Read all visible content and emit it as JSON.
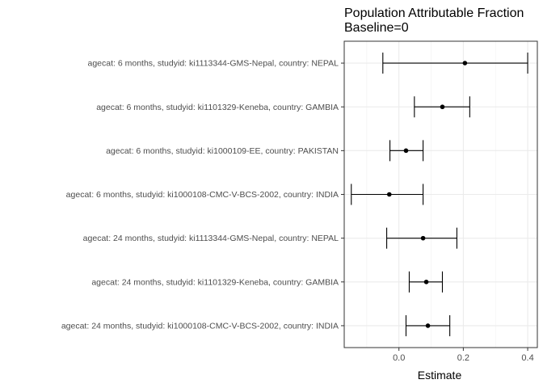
{
  "chart_data": {
    "type": "forest",
    "title": "Population Attributable Fraction",
    "subtitle": "Baseline=0",
    "xlabel": "Estimate",
    "ylabel": "",
    "xlim": [
      -0.17,
      0.43
    ],
    "x_ticks": [
      {
        "value": 0.0,
        "label": "0.0"
      },
      {
        "value": 0.2,
        "label": "0.2"
      },
      {
        "value": 0.4,
        "label": "0.4"
      }
    ],
    "grid": true,
    "rows": [
      {
        "label": "agecat: 6 months, studyid: ki1113344-GMS-Nepal, country: NEPAL",
        "estimate": 0.205,
        "lower": -0.05,
        "upper": 0.4
      },
      {
        "label": "agecat: 6 months, studyid: ki1101329-Keneba, country: GAMBIA",
        "estimate": 0.135,
        "lower": 0.048,
        "upper": 0.22
      },
      {
        "label": "agecat: 6 months, studyid: ki1000109-EE, country: PAKISTAN",
        "estimate": 0.022,
        "lower": -0.028,
        "upper": 0.075
      },
      {
        "label": "agecat: 6 months, studyid: ki1000108-CMC-V-BCS-2002, country: INDIA",
        "estimate": -0.03,
        "lower": -0.148,
        "upper": 0.075
      },
      {
        "label": "agecat: 24 months, studyid: ki1113344-GMS-Nepal, country: NEPAL",
        "estimate": 0.075,
        "lower": -0.038,
        "upper": 0.18
      },
      {
        "label": "agecat: 24 months, studyid: ki1101329-Keneba, country: GAMBIA",
        "estimate": 0.085,
        "lower": 0.032,
        "upper": 0.135
      },
      {
        "label": "agecat: 24 months, studyid: ki1000108-CMC-V-BCS-2002, country: INDIA",
        "estimate": 0.09,
        "lower": 0.022,
        "upper": 0.158
      }
    ]
  }
}
